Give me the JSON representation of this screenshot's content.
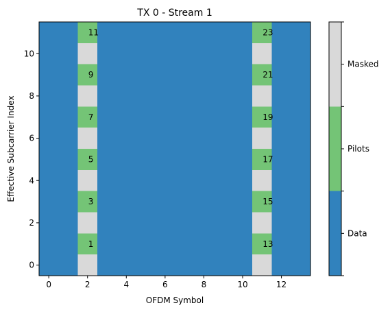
{
  "chart_data": {
    "type": "heatmap",
    "title": "TX 0 - Stream 1",
    "xlabel": "OFDM Symbol",
    "ylabel": "Effective Subcarrier Index",
    "xlim": [
      -0.5,
      13.5
    ],
    "ylim": [
      -0.5,
      11.5
    ],
    "xticks": [
      0,
      2,
      4,
      6,
      8,
      10,
      12
    ],
    "yticks": [
      0,
      2,
      4,
      6,
      8,
      10
    ],
    "n_symbols": 14,
    "n_subcarriers": 12,
    "default_category": "Data",
    "pilot_columns": [
      {
        "symbol": 2,
        "cells": [
          {
            "subcarrier": 0,
            "category": "Masked",
            "label": ""
          },
          {
            "subcarrier": 1,
            "category": "Pilots",
            "label": "1"
          },
          {
            "subcarrier": 2,
            "category": "Masked",
            "label": ""
          },
          {
            "subcarrier": 3,
            "category": "Pilots",
            "label": "3"
          },
          {
            "subcarrier": 4,
            "category": "Masked",
            "label": ""
          },
          {
            "subcarrier": 5,
            "category": "Pilots",
            "label": "5"
          },
          {
            "subcarrier": 6,
            "category": "Masked",
            "label": ""
          },
          {
            "subcarrier": 7,
            "category": "Pilots",
            "label": "7"
          },
          {
            "subcarrier": 8,
            "category": "Masked",
            "label": ""
          },
          {
            "subcarrier": 9,
            "category": "Pilots",
            "label": "9"
          },
          {
            "subcarrier": 10,
            "category": "Masked",
            "label": ""
          },
          {
            "subcarrier": 11,
            "category": "Pilots",
            "label": "11"
          }
        ]
      },
      {
        "symbol": 11,
        "cells": [
          {
            "subcarrier": 0,
            "category": "Masked",
            "label": ""
          },
          {
            "subcarrier": 1,
            "category": "Pilots",
            "label": "13"
          },
          {
            "subcarrier": 2,
            "category": "Masked",
            "label": ""
          },
          {
            "subcarrier": 3,
            "category": "Pilots",
            "label": "15"
          },
          {
            "subcarrier": 4,
            "category": "Masked",
            "label": ""
          },
          {
            "subcarrier": 5,
            "category": "Pilots",
            "label": "17"
          },
          {
            "subcarrier": 6,
            "category": "Masked",
            "label": ""
          },
          {
            "subcarrier": 7,
            "category": "Pilots",
            "label": "19"
          },
          {
            "subcarrier": 8,
            "category": "Masked",
            "label": ""
          },
          {
            "subcarrier": 9,
            "category": "Pilots",
            "label": "21"
          },
          {
            "subcarrier": 10,
            "category": "Masked",
            "label": ""
          },
          {
            "subcarrier": 11,
            "category": "Pilots",
            "label": "23"
          }
        ]
      }
    ],
    "colorbar": {
      "categories": [
        "Data",
        "Pilots",
        "Masked"
      ],
      "colors": {
        "Data": "#3182bd",
        "Pilots": "#74c476",
        "Masked": "#d9d9d9"
      },
      "placement": "right"
    },
    "grid": false
  }
}
